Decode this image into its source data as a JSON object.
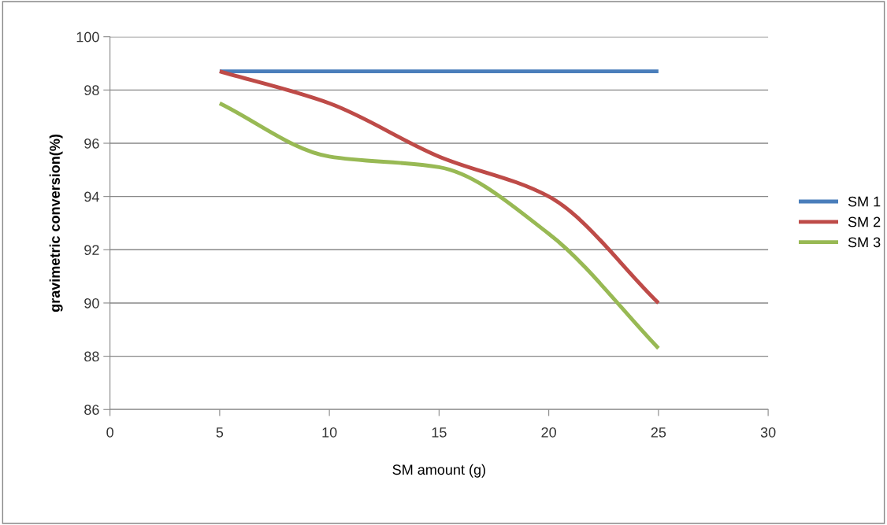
{
  "chart_data": {
    "type": "line",
    "xlabel": "SM amount (g)",
    "ylabel": "gravimetric conversion(%)",
    "x": [
      5,
      10,
      15,
      20,
      25
    ],
    "series": [
      {
        "name": "SM 1",
        "color": "#4a7ebb",
        "values": [
          98.7,
          98.7,
          98.7,
          98.7,
          98.7
        ]
      },
      {
        "name": "SM 2",
        "color": "#be4b48",
        "values": [
          98.7,
          97.5,
          95.5,
          94.0,
          90.0
        ]
      },
      {
        "name": "SM 3",
        "color": "#98b954",
        "values": [
          97.5,
          95.5,
          95.1,
          92.6,
          88.3
        ]
      }
    ],
    "xlim": [
      0,
      30
    ],
    "xticks": [
      0,
      5,
      10,
      15,
      20,
      25,
      30
    ],
    "ylim": [
      86,
      100
    ],
    "yticks": [
      86,
      88,
      90,
      92,
      94,
      96,
      98,
      100
    ],
    "grid": "y",
    "legend": "right",
    "marker": "none",
    "line_style": "solid"
  }
}
